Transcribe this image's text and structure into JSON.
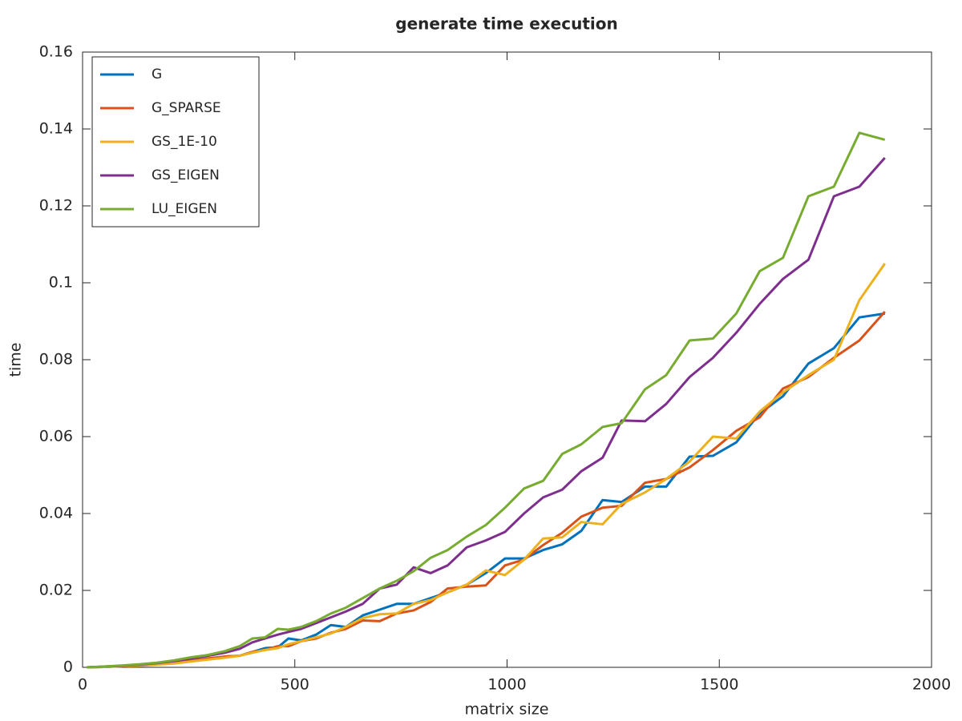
{
  "chart_data": {
    "type": "line",
    "title": "generate time execution",
    "x_label": "matrix size",
    "y_label": "time",
    "x": [
      10,
      50,
      95,
      135,
      175,
      215,
      255,
      295,
      335,
      370,
      400,
      430,
      460,
      485,
      515,
      550,
      585,
      620,
      660,
      700,
      740,
      780,
      820,
      860,
      905,
      950,
      995,
      1040,
      1085,
      1130,
      1175,
      1225,
      1270,
      1325,
      1375,
      1430,
      1485,
      1540,
      1595,
      1650,
      1710,
      1770,
      1830,
      1890
    ],
    "series": [
      {
        "name": "G",
        "color": "#0072bd",
        "values": [
          0,
          0.0001,
          0.0003,
          0.0005,
          0.0008,
          0.0012,
          0.0017,
          0.0023,
          0.0028,
          0.003,
          0.004,
          0.005,
          0.0052,
          0.0075,
          0.007,
          0.0085,
          0.011,
          0.0105,
          0.0135,
          0.015,
          0.0165,
          0.0165,
          0.018,
          0.0195,
          0.0215,
          0.0245,
          0.0283,
          0.0283,
          0.0305,
          0.032,
          0.0355,
          0.0435,
          0.043,
          0.047,
          0.047,
          0.0548,
          0.055,
          0.0585,
          0.066,
          0.0705,
          0.079,
          0.083,
          0.091,
          0.092
        ]
      },
      {
        "name": "G_SPARSE",
        "color": "#d95319",
        "values": [
          0,
          0.0001,
          0.0003,
          0.0005,
          0.0008,
          0.0012,
          0.0017,
          0.0023,
          0.0028,
          0.003,
          0.004,
          0.0045,
          0.0055,
          0.0055,
          0.0068,
          0.0075,
          0.009,
          0.01,
          0.0122,
          0.012,
          0.014,
          0.0148,
          0.017,
          0.0205,
          0.021,
          0.0213,
          0.0265,
          0.028,
          0.0318,
          0.035,
          0.0392,
          0.0415,
          0.042,
          0.048,
          0.049,
          0.052,
          0.0565,
          0.0615,
          0.065,
          0.0725,
          0.0755,
          0.0805,
          0.085,
          0.0925
        ]
      },
      {
        "name": "GS_1E-10",
        "color": "#edb120",
        "values": [
          0,
          0.0001,
          0.0003,
          0.0004,
          0.0007,
          0.001,
          0.0015,
          0.002,
          0.0025,
          0.003,
          0.0038,
          0.0045,
          0.005,
          0.006,
          0.0068,
          0.0078,
          0.0088,
          0.0105,
          0.0128,
          0.0138,
          0.014,
          0.0165,
          0.0175,
          0.0195,
          0.0215,
          0.0252,
          0.024,
          0.028,
          0.0335,
          0.0338,
          0.0378,
          0.0372,
          0.0425,
          0.0455,
          0.049,
          0.0535,
          0.06,
          0.0595,
          0.0665,
          0.0715,
          0.076,
          0.08,
          0.0955,
          0.105
        ]
      },
      {
        "name": "GS_EIGEN",
        "color": "#7e2f8e",
        "values": [
          0,
          0.0002,
          0.0004,
          0.0007,
          0.0011,
          0.0016,
          0.0023,
          0.003,
          0.0038,
          0.0048,
          0.0065,
          0.0075,
          0.0085,
          0.0092,
          0.01,
          0.0115,
          0.013,
          0.0145,
          0.0165,
          0.0205,
          0.0215,
          0.026,
          0.0245,
          0.0265,
          0.0312,
          0.033,
          0.0352,
          0.04,
          0.0442,
          0.0462,
          0.051,
          0.0545,
          0.0642,
          0.064,
          0.0685,
          0.0755,
          0.0805,
          0.087,
          0.0945,
          0.101,
          0.106,
          0.1225,
          0.125,
          0.1325
        ]
      },
      {
        "name": "LU_EIGEN",
        "color": "#77ac30",
        "values": [
          0,
          0.0002,
          0.0005,
          0.0008,
          0.0012,
          0.0018,
          0.0026,
          0.0032,
          0.0042,
          0.0055,
          0.0075,
          0.0078,
          0.01,
          0.0098,
          0.0105,
          0.012,
          0.014,
          0.0155,
          0.018,
          0.0205,
          0.0225,
          0.025,
          0.0285,
          0.0305,
          0.034,
          0.037,
          0.0415,
          0.0465,
          0.0485,
          0.0555,
          0.058,
          0.0625,
          0.0635,
          0.0723,
          0.076,
          0.085,
          0.0855,
          0.092,
          0.103,
          0.1065,
          0.1225,
          0.125,
          0.139,
          0.1372
        ]
      }
    ],
    "xlim": [
      0,
      2000
    ],
    "xticks": [
      0,
      500,
      1000,
      1500,
      2000
    ],
    "ylim": [
      0,
      0.16
    ],
    "yticks": [
      0,
      0.02,
      0.04,
      0.06,
      0.08,
      0.1,
      0.12,
      0.14,
      0.16
    ],
    "grid": false,
    "legend": "top-left"
  }
}
